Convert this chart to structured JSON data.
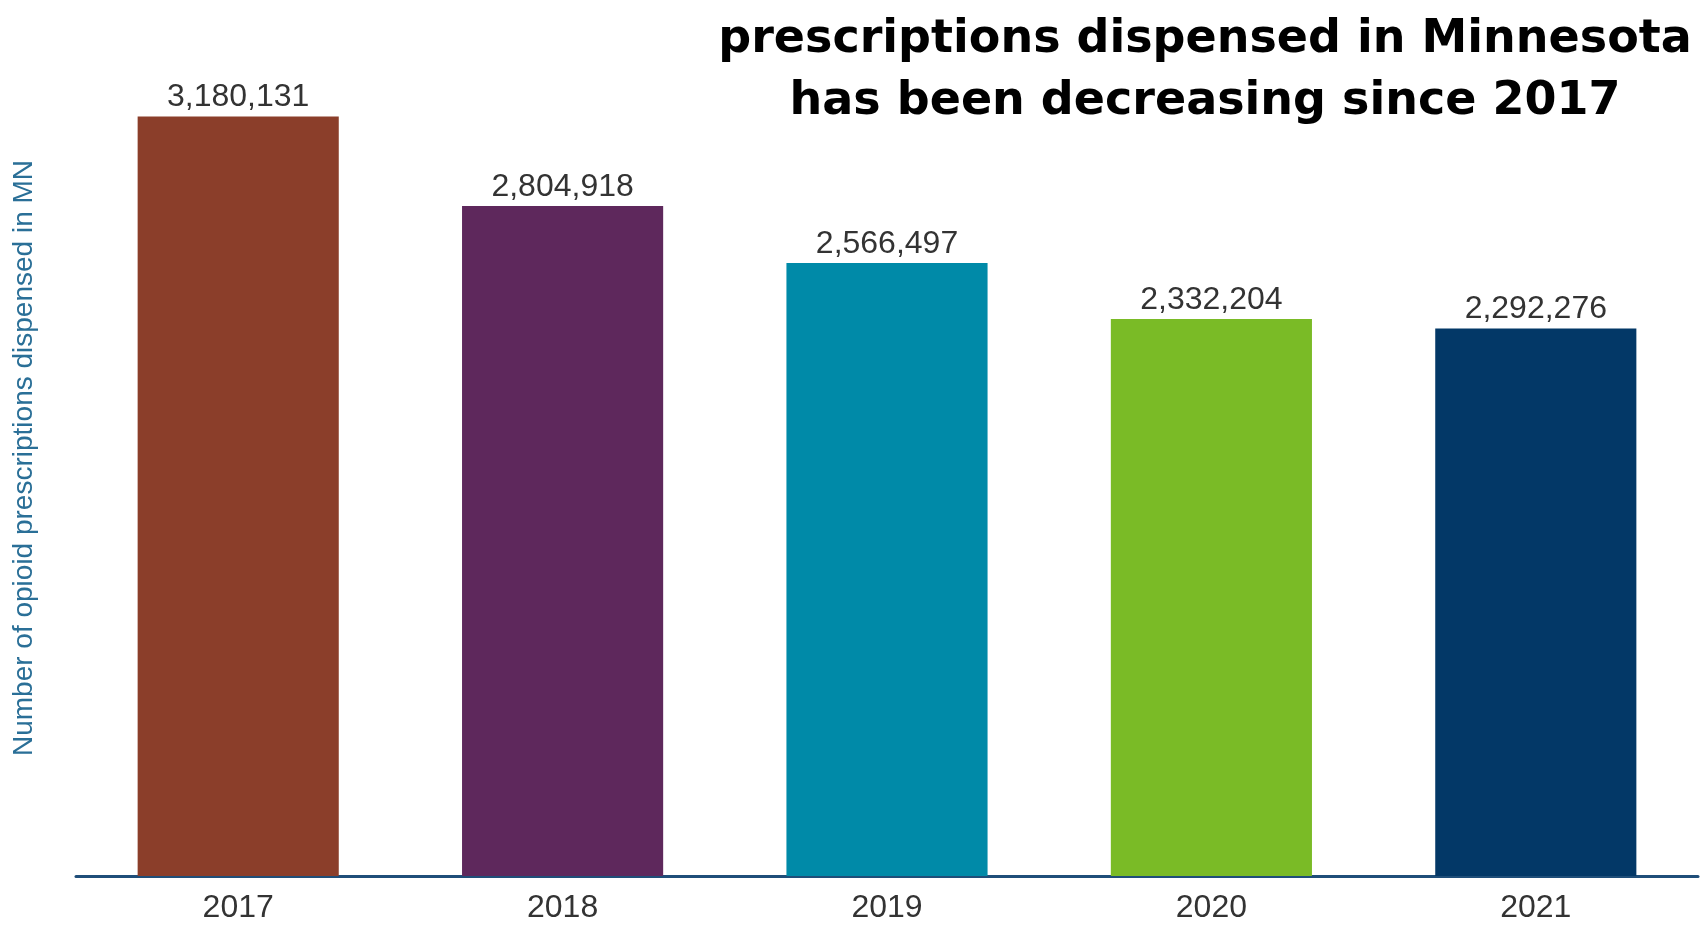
{
  "chart_data": {
    "type": "bar",
    "title": "prescriptions dispensed in Minnesota\nhas been decreasing since 2017",
    "ylabel": "Number of opioid prescriptions dispensed in MN",
    "categories": [
      "2017",
      "2018",
      "2019",
      "2020",
      "2021"
    ],
    "values": [
      3180131,
      2804918,
      2566497,
      2332204,
      2292276
    ],
    "value_labels": [
      "3,180,131",
      "2,804,918",
      "2,566,497",
      "2,332,204",
      "2,292,276"
    ],
    "colors": [
      "#8b3e2a",
      "#5e285c",
      "#008aa8",
      "#7abb26",
      "#033867"
    ],
    "grid": false
  }
}
